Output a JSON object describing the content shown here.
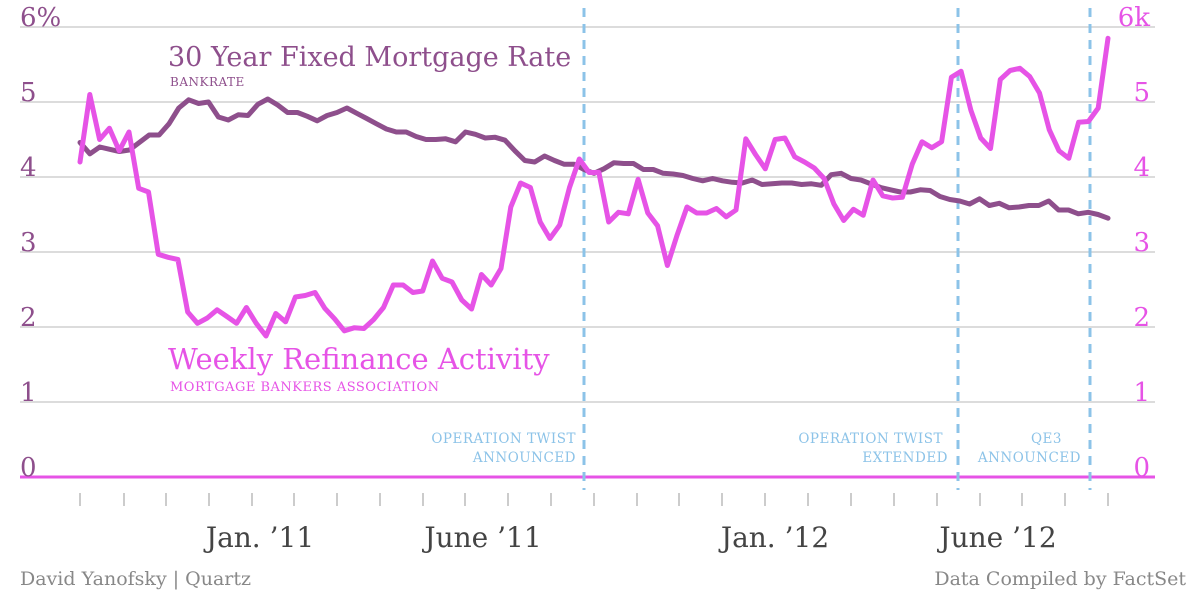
{
  "chart_data": {
    "type": "line",
    "y_left_ticks": [
      "6%",
      "5",
      "4",
      "3",
      "2",
      "1",
      "0"
    ],
    "y_right_ticks": [
      "6k",
      "5",
      "4",
      "3",
      "2",
      "1",
      "0"
    ],
    "x_labels": [
      "Jan. ’11",
      "June ’11",
      "Jan. ’12",
      "June ’12"
    ],
    "ylim_left": [
      0,
      6
    ],
    "ylim_right": [
      0,
      6000
    ],
    "grid": true,
    "series": [
      {
        "name": "30 Year Fixed Mortgage Rate",
        "source": "BANKRATE",
        "color": "#8e4f8c",
        "axis": "left",
        "values": [
          4.46,
          4.31,
          4.4,
          4.37,
          4.34,
          4.36,
          4.46,
          4.56,
          4.56,
          4.71,
          4.92,
          5.03,
          4.98,
          5.0,
          4.8,
          4.76,
          4.83,
          4.82,
          4.97,
          5.04,
          4.96,
          4.86,
          4.86,
          4.81,
          4.75,
          4.82,
          4.86,
          4.92,
          4.85,
          4.78,
          4.71,
          4.64,
          4.6,
          4.6,
          4.54,
          4.5,
          4.5,
          4.51,
          4.47,
          4.6,
          4.57,
          4.52,
          4.53,
          4.49,
          4.35,
          4.22,
          4.2,
          4.28,
          4.22,
          4.17,
          4.17,
          4.1,
          4.05,
          4.11,
          4.19,
          4.18,
          4.18,
          4.1,
          4.1,
          4.05,
          4.04,
          4.02,
          3.98,
          3.95,
          3.98,
          3.95,
          3.93,
          3.92,
          3.96,
          3.9,
          3.91,
          3.92,
          3.92,
          3.9,
          3.91,
          3.89,
          4.03,
          4.05,
          3.98,
          3.96,
          3.91,
          3.86,
          3.83,
          3.8,
          3.8,
          3.83,
          3.82,
          3.74,
          3.7,
          3.68,
          3.64,
          3.71,
          3.62,
          3.65,
          3.59,
          3.6,
          3.62,
          3.62,
          3.68,
          3.56,
          3.56,
          3.51,
          3.53,
          3.5,
          3.45
        ]
      },
      {
        "name": "Weekly Refinance Activity",
        "source": "MORTGAGE BANKERS ASSOCIATION",
        "color": "#e653e6",
        "axis": "right",
        "values": [
          4200,
          5100,
          4500,
          4650,
          4350,
          4600,
          3850,
          3800,
          2970,
          2930,
          2900,
          2200,
          2050,
          2120,
          2230,
          2140,
          2050,
          2260,
          2050,
          1880,
          2180,
          2070,
          2400,
          2420,
          2460,
          2250,
          2110,
          1950,
          1990,
          1980,
          2100,
          2260,
          2560,
          2560,
          2460,
          2480,
          2880,
          2650,
          2600,
          2360,
          2240,
          2700,
          2560,
          2780,
          3600,
          3920,
          3860,
          3400,
          3180,
          3360,
          3860,
          4240,
          4060,
          4060,
          3400,
          3530,
          3510,
          3970,
          3520,
          3350,
          2820,
          3230,
          3600,
          3520,
          3520,
          3580,
          3470,
          3560,
          4510,
          4300,
          4110,
          4500,
          4520,
          4270,
          4200,
          4120,
          3980,
          3640,
          3420,
          3570,
          3490,
          3960,
          3750,
          3720,
          3730,
          4170,
          4470,
          4390,
          4470,
          5330,
          5410,
          4890,
          4520,
          4380,
          5300,
          5420,
          5450,
          5340,
          5120,
          4630,
          4350,
          4250,
          4730,
          4740,
          4920,
          5850
        ]
      }
    ],
    "annotations": [
      {
        "line1": "OPERATION TWIST",
        "line2": "ANNOUNCED"
      },
      {
        "line1": "OPERATION TWIST",
        "line2": "EXTENDED"
      },
      {
        "line1": "QE3",
        "line2": "ANNOUNCED"
      }
    ],
    "annotation_color": "#8cc3e8"
  },
  "credits": {
    "left": "David Yanofsky | Quartz",
    "right": "Data Compiled by FactSet"
  }
}
